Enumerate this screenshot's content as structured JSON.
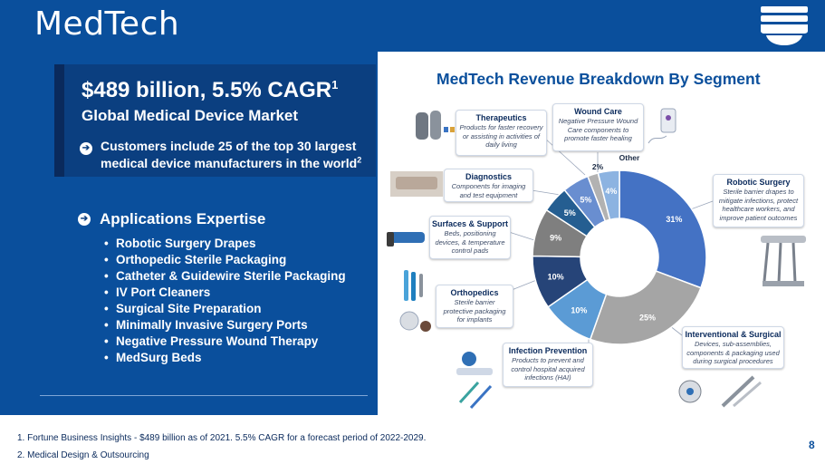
{
  "header": {
    "title": "MedTech"
  },
  "colors": {
    "brand_blue": "#0a4f9c",
    "dark_blue": "#0b3f80",
    "chart_dark": "#1f3f7a"
  },
  "left": {
    "market_value": "$489 billion, 5.5% CAGR",
    "market_sup": "1",
    "market_sub": "Global Medical Device Market",
    "customers": "Customers include 25 of the top 30 largest medical device manufacturers in the world",
    "customers_sup": "2",
    "apps_title": "Applications Expertise",
    "apps": [
      "Robotic Surgery Drapes",
      "Orthopedic Sterile Packaging",
      "Catheter & Guidewire Sterile Packaging",
      "IV Port Cleaners",
      "Surgical Site Preparation",
      "Minimally Invasive Surgery Ports",
      "Negative Pressure Wound Therapy",
      "MedSurg Beds"
    ]
  },
  "footnotes": {
    "f1": "1. Fortune Business Insights - $489 billion as of 2021. 5.5% CAGR for a forecast period of 2022-2029.",
    "f2": "2. Medical Design & Outsourcing"
  },
  "page_number": "8",
  "chart_data": {
    "type": "pie",
    "title": "MedTech Revenue Breakdown By Segment",
    "series": [
      {
        "name": "Robotic Surgery",
        "value": 31,
        "label": "31%",
        "color": "#4472c4"
      },
      {
        "name": "Interventional & Surgical",
        "value": 25,
        "label": "25%",
        "color": "#a5a5a5"
      },
      {
        "name": "Infection Prevention",
        "value": 10,
        "label": "10%",
        "color": "#5b9bd5"
      },
      {
        "name": "Orthopedics",
        "value": 10,
        "label": "10%",
        "color": "#264478"
      },
      {
        "name": "Surfaces & Support",
        "value": 9,
        "label": "9%",
        "color": "#7f7f7f"
      },
      {
        "name": "Diagnostics",
        "value": 5,
        "label": "5%",
        "color": "#255e91"
      },
      {
        "name": "Therapeutics",
        "value": 5,
        "label": "5%",
        "color": "#698ed0"
      },
      {
        "name": "Wound Care",
        "value": 2,
        "label": "2%",
        "color": "#b2b2b2"
      },
      {
        "name": "Other",
        "value": 4,
        "label": "4%",
        "color": "#8cb3e1"
      }
    ],
    "other_label": "Other",
    "callouts": [
      {
        "title": "Therapeutics",
        "desc": "Products for faster recovery or assisting in activities of daily living"
      },
      {
        "title": "Wound Care",
        "desc": "Negative Pressure Wound Care components to promote faster healing"
      },
      {
        "title": "Robotic Surgery",
        "desc": "Sterile barrier drapes to mitigate infections, protect healthcare workers, and improve patient outcomes"
      },
      {
        "title": "Diagnostics",
        "desc": "Components for imaging and test equipment"
      },
      {
        "title": "Surfaces & Support",
        "desc": "Beds, positioning devices, & temperature control pads"
      },
      {
        "title": "Orthopedics",
        "desc": "Sterile barrier protective packaging for implants"
      },
      {
        "title": "Interventional & Surgical",
        "desc": "Devices, sub-assemblies, components & packaging used during surgical procedures"
      },
      {
        "title": "Infection Prevention",
        "desc": "Products to prevent and control hospital acquired infections (HAI)"
      }
    ]
  }
}
